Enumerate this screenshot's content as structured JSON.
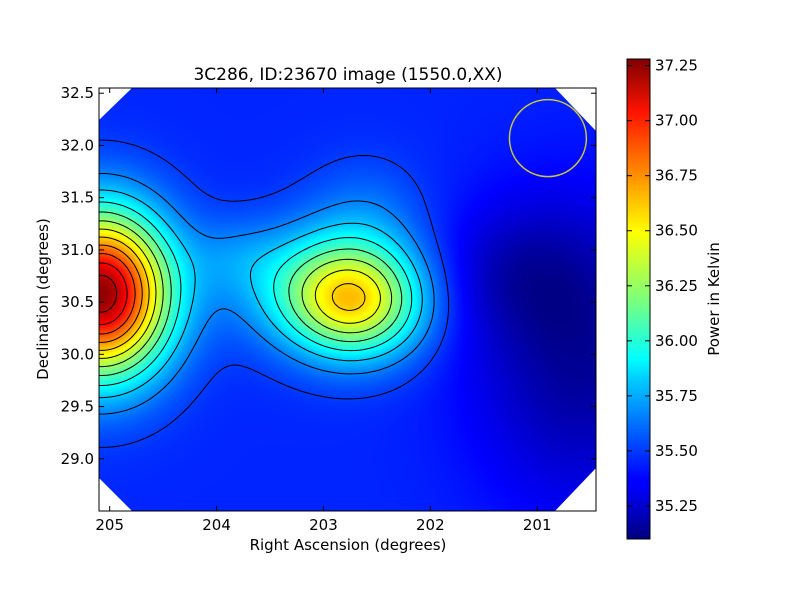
{
  "chart_data": {
    "type": "heatmap",
    "title": "3C286, ID:23670 image (1550.0,XX)",
    "xlabel": "Right Ascension (degrees)",
    "ylabel": "Declination (degrees)",
    "colorbar_label": "Power in Kelvin",
    "x_inverted": true,
    "xlim": [
      205.1,
      200.45
    ],
    "ylim": [
      28.5,
      32.55
    ],
    "x_ticks": [
      205,
      204,
      203,
      202,
      201
    ],
    "x_tick_labels": [
      "205",
      "204",
      "203",
      "202",
      "201"
    ],
    "y_ticks": [
      29.0,
      29.5,
      30.0,
      30.5,
      31.0,
      31.5,
      32.0,
      32.5
    ],
    "y_tick_labels": [
      "29.0",
      "29.5",
      "30.0",
      "30.5",
      "31.0",
      "31.5",
      "32.0",
      "32.5"
    ],
    "colorbar_range": [
      35.1,
      37.28
    ],
    "colorbar_ticks": [
      35.25,
      35.5,
      35.75,
      36.0,
      36.25,
      36.5,
      36.75,
      37.0,
      37.25
    ],
    "colorbar_tick_labels": [
      "35.25",
      "35.50",
      "35.75",
      "36.00",
      "36.25",
      "36.50",
      "36.75",
      "37.00",
      "37.25"
    ],
    "colormap": "jet",
    "baseline_power": 35.45,
    "sources": [
      {
        "ra": 205.08,
        "dec": 30.58,
        "peak": 37.24,
        "sigma_ra": 0.45,
        "sigma_dec": 0.55
      },
      {
        "ra": 202.7,
        "dec": 30.5,
        "peak": 36.4,
        "sigma_ra": 0.45,
        "sigma_dec": 0.38
      },
      {
        "ra": 203.2,
        "dec": 30.7,
        "peak": 35.75,
        "sigma_ra": 0.55,
        "sigma_dec": 0.4
      },
      {
        "ra": 202.6,
        "dec": 31.3,
        "peak": 35.6,
        "sigma_ra": 0.4,
        "sigma_dec": 0.4
      },
      {
        "ra": 203.85,
        "dec": 30.95,
        "peak": 35.55,
        "sigma_ra": 0.3,
        "sigma_dec": 0.25
      },
      {
        "ra": 200.6,
        "dec": 30.0,
        "peak": 35.15,
        "sigma_ra": 0.7,
        "sigma_dec": 1.0
      },
      {
        "ra": 201.2,
        "dec": 30.8,
        "peak": 35.3,
        "sigma_ra": 0.5,
        "sigma_dec": 0.45
      }
    ],
    "contour_levels": [
      35.5,
      35.65,
      35.8,
      35.95,
      36.1,
      36.25,
      36.4,
      36.55,
      36.7,
      36.85,
      37.0,
      37.15
    ],
    "beam_circle": {
      "ra": 200.9,
      "dec": 32.07,
      "radius_deg": 0.36,
      "color": "#c8c83c"
    },
    "grid": false
  }
}
